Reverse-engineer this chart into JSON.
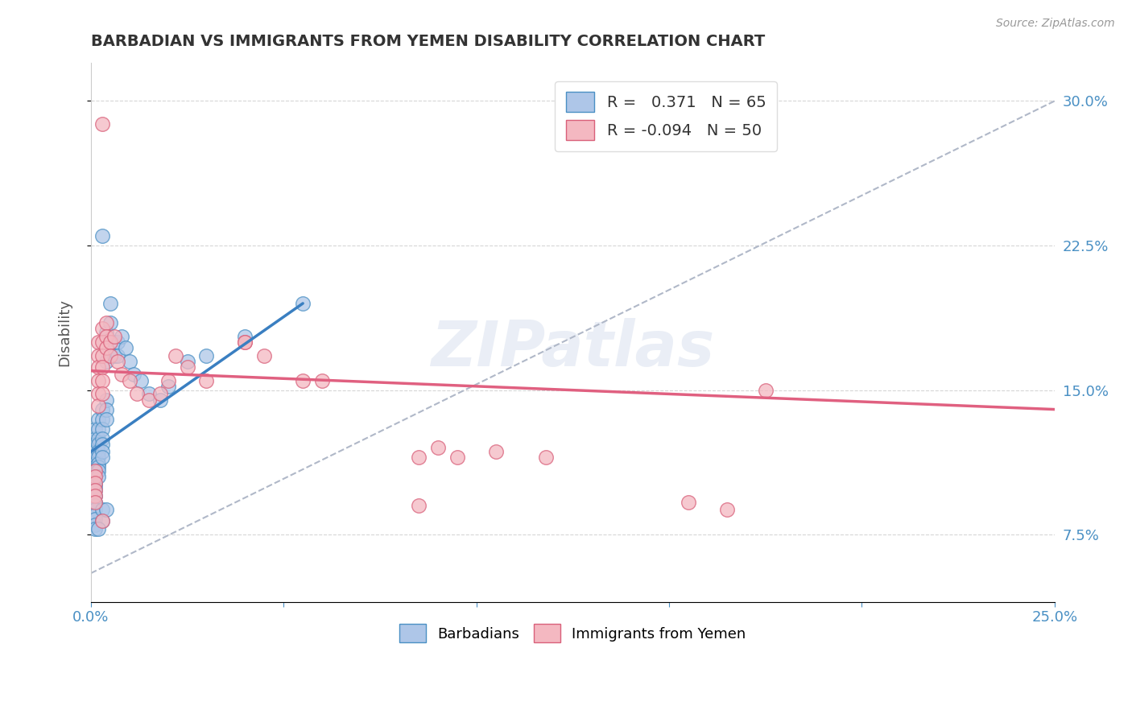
{
  "title": "BARBADIAN VS IMMIGRANTS FROM YEMEN DISABILITY CORRELATION CHART",
  "source": "Source: ZipAtlas.com",
  "xlabel": "",
  "ylabel": "Disability",
  "xlim": [
    0.0,
    0.25
  ],
  "ylim": [
    0.04,
    0.32
  ],
  "x_ticks": [
    0.0,
    0.05,
    0.1,
    0.15,
    0.2,
    0.25
  ],
  "x_tick_labels": [
    "0.0%",
    "",
    "",
    "",
    "",
    "25.0%"
  ],
  "y_ticks": [
    0.075,
    0.15,
    0.225,
    0.3
  ],
  "y_tick_labels": [
    "7.5%",
    "15.0%",
    "22.5%",
    "30.0%"
  ],
  "blue_R": 0.371,
  "blue_N": 65,
  "pink_R": -0.094,
  "pink_N": 50,
  "blue_color": "#aec6e8",
  "pink_color": "#f4b8c1",
  "blue_edge_color": "#4a90c4",
  "pink_edge_color": "#d9607a",
  "blue_line_color": "#3a7fc1",
  "pink_line_color": "#e06080",
  "background_color": "#ffffff",
  "grid_color": "#cccccc",
  "title_color": "#333333",
  "axis_label_color": "#555555",
  "tick_color": "#4a90c4",
  "watermark": "ZIPatlas",
  "blue_scatter": [
    [
      0.001,
      0.13
    ],
    [
      0.001,
      0.125
    ],
    [
      0.001,
      0.122
    ],
    [
      0.001,
      0.118
    ],
    [
      0.001,
      0.115
    ],
    [
      0.001,
      0.112
    ],
    [
      0.001,
      0.11
    ],
    [
      0.001,
      0.108
    ],
    [
      0.001,
      0.105
    ],
    [
      0.001,
      0.102
    ],
    [
      0.001,
      0.1
    ],
    [
      0.001,
      0.098
    ],
    [
      0.001,
      0.095
    ],
    [
      0.001,
      0.092
    ],
    [
      0.001,
      0.09
    ],
    [
      0.001,
      0.088
    ],
    [
      0.001,
      0.085
    ],
    [
      0.001,
      0.083
    ],
    [
      0.001,
      0.08
    ],
    [
      0.001,
      0.078
    ],
    [
      0.002,
      0.135
    ],
    [
      0.002,
      0.13
    ],
    [
      0.002,
      0.125
    ],
    [
      0.002,
      0.122
    ],
    [
      0.002,
      0.118
    ],
    [
      0.002,
      0.115
    ],
    [
      0.002,
      0.112
    ],
    [
      0.002,
      0.11
    ],
    [
      0.002,
      0.108
    ],
    [
      0.002,
      0.105
    ],
    [
      0.003,
      0.14
    ],
    [
      0.003,
      0.135
    ],
    [
      0.003,
      0.13
    ],
    [
      0.003,
      0.125
    ],
    [
      0.003,
      0.122
    ],
    [
      0.003,
      0.118
    ],
    [
      0.003,
      0.115
    ],
    [
      0.004,
      0.145
    ],
    [
      0.004,
      0.14
    ],
    [
      0.004,
      0.135
    ],
    [
      0.004,
      0.165
    ],
    [
      0.004,
      0.18
    ],
    [
      0.005,
      0.195
    ],
    [
      0.005,
      0.185
    ],
    [
      0.006,
      0.175
    ],
    [
      0.006,
      0.168
    ],
    [
      0.007,
      0.175
    ],
    [
      0.007,
      0.168
    ],
    [
      0.008,
      0.178
    ],
    [
      0.009,
      0.172
    ],
    [
      0.01,
      0.165
    ],
    [
      0.011,
      0.158
    ],
    [
      0.013,
      0.155
    ],
    [
      0.015,
      0.148
    ],
    [
      0.018,
      0.145
    ],
    [
      0.02,
      0.152
    ],
    [
      0.025,
      0.165
    ],
    [
      0.03,
      0.168
    ],
    [
      0.04,
      0.178
    ],
    [
      0.055,
      0.195
    ],
    [
      0.003,
      0.23
    ],
    [
      0.003,
      0.088
    ],
    [
      0.003,
      0.082
    ],
    [
      0.004,
      0.088
    ],
    [
      0.002,
      0.078
    ]
  ],
  "pink_scatter": [
    [
      0.001,
      0.108
    ],
    [
      0.001,
      0.105
    ],
    [
      0.001,
      0.102
    ],
    [
      0.001,
      0.098
    ],
    [
      0.001,
      0.095
    ],
    [
      0.001,
      0.092
    ],
    [
      0.002,
      0.175
    ],
    [
      0.002,
      0.168
    ],
    [
      0.002,
      0.162
    ],
    [
      0.002,
      0.155
    ],
    [
      0.002,
      0.148
    ],
    [
      0.002,
      0.142
    ],
    [
      0.003,
      0.182
    ],
    [
      0.003,
      0.175
    ],
    [
      0.003,
      0.168
    ],
    [
      0.003,
      0.162
    ],
    [
      0.003,
      0.155
    ],
    [
      0.003,
      0.148
    ],
    [
      0.004,
      0.185
    ],
    [
      0.004,
      0.178
    ],
    [
      0.004,
      0.172
    ],
    [
      0.005,
      0.175
    ],
    [
      0.005,
      0.168
    ],
    [
      0.006,
      0.178
    ],
    [
      0.007,
      0.165
    ],
    [
      0.008,
      0.158
    ],
    [
      0.01,
      0.155
    ],
    [
      0.012,
      0.148
    ],
    [
      0.015,
      0.145
    ],
    [
      0.018,
      0.148
    ],
    [
      0.02,
      0.155
    ],
    [
      0.022,
      0.168
    ],
    [
      0.025,
      0.162
    ],
    [
      0.03,
      0.155
    ],
    [
      0.04,
      0.175
    ],
    [
      0.045,
      0.168
    ],
    [
      0.055,
      0.155
    ],
    [
      0.06,
      0.155
    ],
    [
      0.085,
      0.115
    ],
    [
      0.09,
      0.12
    ],
    [
      0.105,
      0.118
    ],
    [
      0.118,
      0.115
    ],
    [
      0.155,
      0.092
    ],
    [
      0.165,
      0.088
    ],
    [
      0.003,
      0.288
    ],
    [
      0.04,
      0.175
    ],
    [
      0.085,
      0.09
    ],
    [
      0.095,
      0.115
    ],
    [
      0.003,
      0.082
    ],
    [
      0.175,
      0.15
    ]
  ],
  "blue_line": [
    [
      0.0,
      0.118
    ],
    [
      0.055,
      0.195
    ]
  ],
  "pink_line": [
    [
      0.0,
      0.16
    ],
    [
      0.25,
      0.14
    ]
  ],
  "ref_line": [
    [
      0.0,
      0.055
    ],
    [
      0.25,
      0.3
    ]
  ]
}
